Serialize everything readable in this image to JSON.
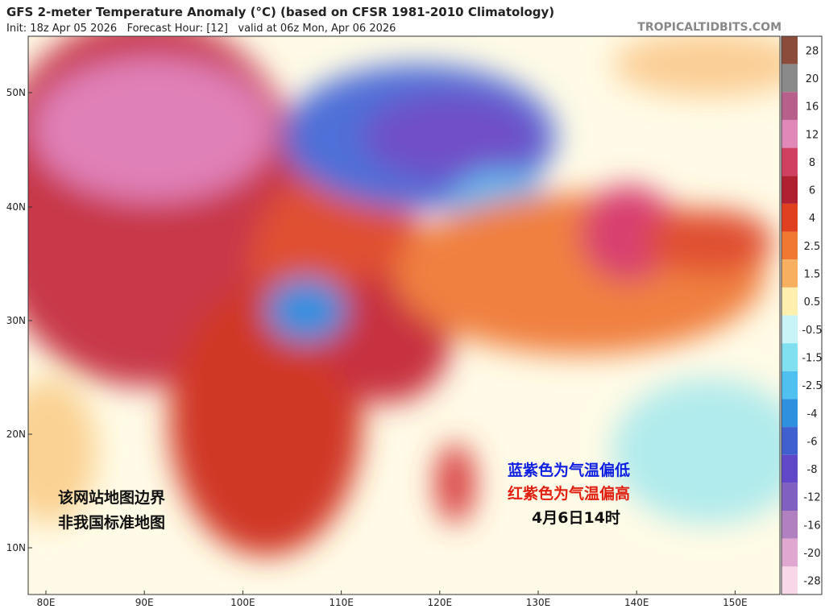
{
  "header": {
    "title": "GFS 2-meter Temperature Anomaly (°C) (based on CFSR 1981-2010 Climatology)",
    "subtitle": "Init: 18z Apr 05 2026   Forecast Hour: [12]   valid at 06z Mon, Apr 06 2026",
    "watermark": "TROPICALTIDBITS.COM"
  },
  "map": {
    "lat_labels": [
      "50N",
      "40N",
      "30N",
      "20N",
      "10N"
    ],
    "lon_labels": [
      "80E",
      "90E",
      "100E",
      "110E",
      "120E",
      "130E",
      "140E",
      "150E"
    ]
  },
  "colorbar": {
    "labels": [
      28,
      20,
      16,
      12,
      8,
      6,
      4,
      2.5,
      1.5,
      0.5,
      -0.5,
      -1.5,
      -2.5,
      -4,
      -6,
      -8,
      -12,
      -16,
      -20,
      -28
    ],
    "colors": [
      "#8c4c3c",
      "#8a8a8a",
      "#b8608c",
      "#e088b8",
      "#d04060",
      "#b02030",
      "#e04020",
      "#f07830",
      "#f8b060",
      "#fff0b0",
      "#c8f4f8",
      "#80e0f0",
      "#50c0f0",
      "#3090e0",
      "#4060d0",
      "#6048c8",
      "#8060c0",
      "#b080c0",
      "#e0a8d0",
      "#f8d8e8"
    ]
  },
  "annotations": {
    "cold": "蓝紫色为气温偏低",
    "warm": "红紫色为气温偏高",
    "time": "4月6日14时",
    "disclaimer": [
      "该网站地图边界",
      "非我国标准地图"
    ]
  }
}
